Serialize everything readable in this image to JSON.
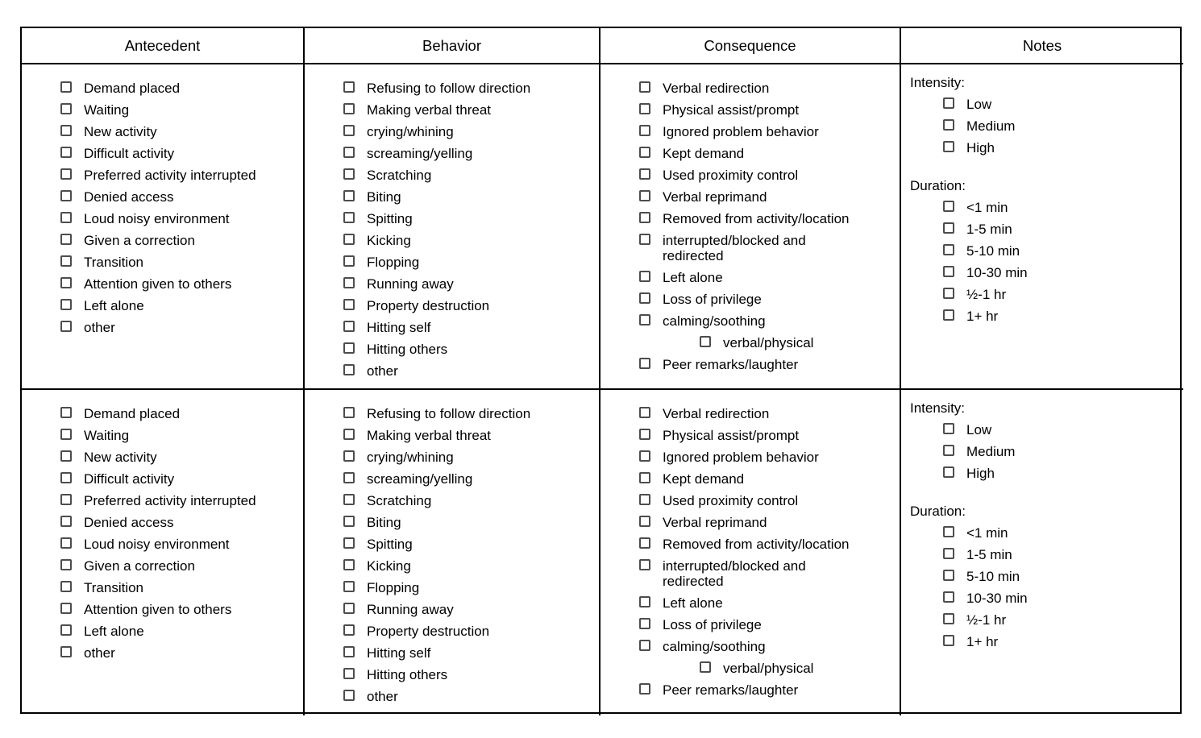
{
  "table": {
    "headers": [
      "Antecedent",
      "Behavior",
      "Consequence",
      "Notes"
    ],
    "row_count": 2,
    "notes": {
      "intensity_label": "Intensity:",
      "duration_label": "Duration:"
    }
  },
  "lists": {
    "antecedent": [
      "Demand placed",
      "Waiting",
      "New activity",
      "Difficult activity",
      "Preferred activity interrupted",
      "Denied access",
      "Loud noisy environment",
      "Given a correction",
      "Transition",
      "Attention given to others",
      "Left alone",
      "other"
    ],
    "behavior": [
      "Refusing to follow direction",
      "Making verbal threat",
      "crying/whining",
      "screaming/yelling",
      "Scratching",
      "Biting",
      "Spitting",
      "Kicking",
      "Flopping",
      "Running away",
      "Property destruction",
      "Hitting self",
      "Hitting others",
      "other"
    ],
    "consequence": [
      "Verbal redirection",
      "Physical assist/prompt",
      "Ignored problem behavior",
      "Kept demand",
      "Used proximity control",
      "Verbal reprimand",
      "Removed from activity/location",
      "interrupted/blocked and\nredirected",
      "Left alone",
      "Loss of privilege",
      "calming/soothing",
      {
        "label": "verbal/physical",
        "sub": true
      },
      "Peer remarks/laughter"
    ],
    "notes_intensity": [
      "Low",
      "Medium",
      "High"
    ],
    "notes_duration": [
      "<1 min",
      "1-5 min",
      "5-10 min",
      "10-30 min",
      "½-1 hr",
      "1+ hr"
    ]
  },
  "checkbox_state": "all unchecked",
  "colors": {
    "table_border": "#000000",
    "checkbox_border": "#4d4d4d",
    "text": "#000000",
    "background": "#ffffff"
  }
}
